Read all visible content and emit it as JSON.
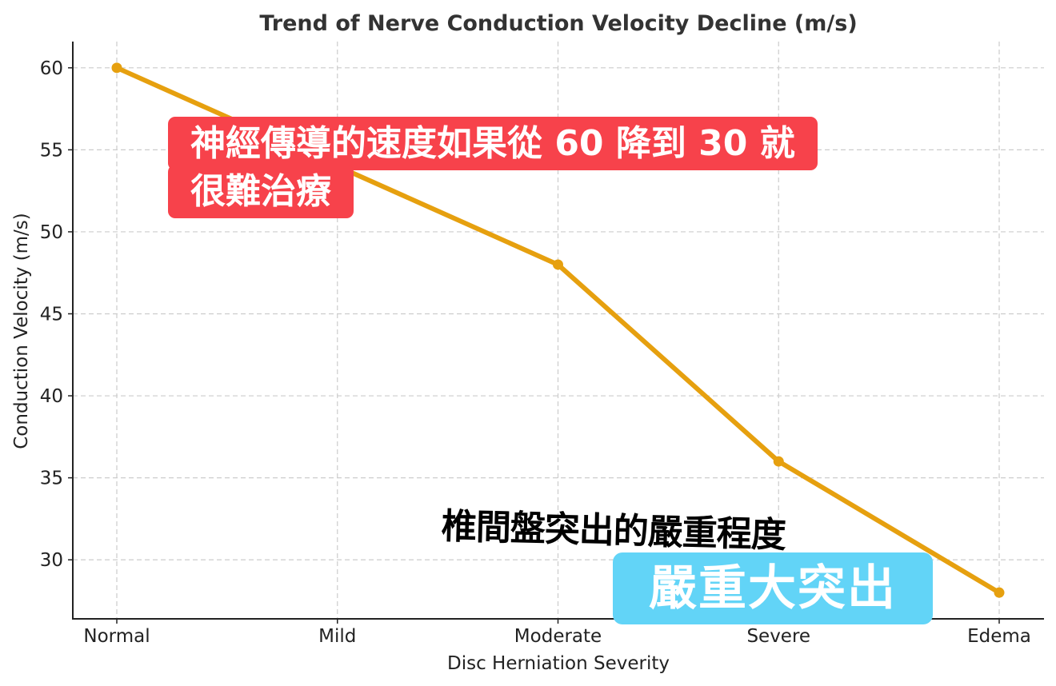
{
  "chart_data": {
    "type": "line",
    "title": "Trend of Nerve Conduction Velocity Decline (m/s)",
    "xlabel": "Disc Herniation Severity",
    "ylabel": "Conduction Velocity (m/s)",
    "categories": [
      "Normal",
      "Mild",
      "Moderate",
      "Severe",
      "Edema"
    ],
    "series": [
      {
        "name": "Conduction Velocity",
        "values": [
          60,
          54,
          48,
          36,
          28
        ],
        "color": "#e6a00f"
      }
    ],
    "ylim": [
      26.4,
      61.6
    ],
    "yticks": [
      30,
      35,
      40,
      45,
      50,
      55,
      60
    ],
    "grid": true,
    "legend": "none"
  },
  "annotations": {
    "red_callout_line1": "神經傳導的速度如果從 60 降到 30 就",
    "red_callout_line2": "很難治療",
    "black_caption": "椎間盤突出的嚴重程度",
    "blue_callout": "嚴重大突出",
    "red_color": "#f7424b",
    "blue_color": "#62d4f7"
  }
}
